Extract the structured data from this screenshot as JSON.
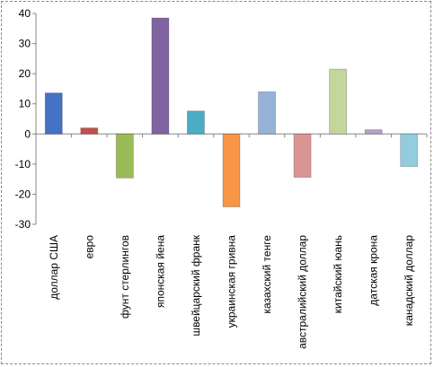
{
  "chart_data": {
    "type": "bar",
    "categories": [
      "доллар США",
      "евро",
      "фунт стерлингов",
      "японская йена",
      "швейцарский франк",
      "украинская гривна",
      "казахский тенге",
      "австралийский доллар",
      "китайский юань",
      "датская крона",
      "канадский доллар"
    ],
    "values": [
      13.6,
      2.0,
      -14.6,
      38.5,
      7.6,
      -24.2,
      14.0,
      -14.4,
      21.5,
      1.4,
      -10.8
    ],
    "colors": [
      "#4472c4",
      "#c0504d",
      "#9bbb59",
      "#8064a2",
      "#4bacc6",
      "#f79646",
      "#95b3d7",
      "#d99594",
      "#c3d69b",
      "#b3a2c7",
      "#93cddd"
    ],
    "ylim": [
      -30,
      40
    ],
    "yticks": [
      40,
      30,
      20,
      10,
      0,
      -10,
      -20,
      -30
    ],
    "title": "",
    "xlabel": "",
    "ylabel": ""
  }
}
